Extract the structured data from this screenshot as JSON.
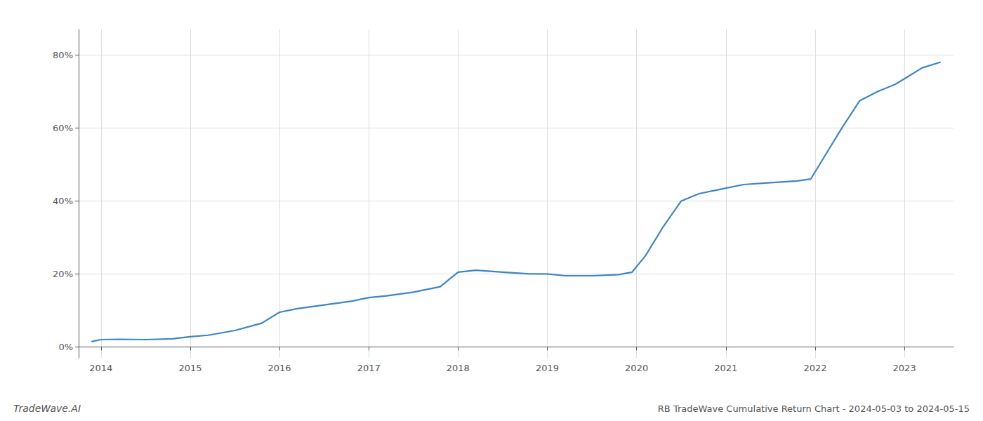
{
  "chart_data": {
    "type": "line",
    "title": "RB TradeWave Cumulative Return Chart - 2024-05-03 to 2024-05-15",
    "annotations": [
      "TradeWave.AI"
    ],
    "color": "#3d85c8",
    "x": [
      2013.9,
      2014.0,
      2014.2,
      2014.5,
      2014.8,
      2015.0,
      2015.2,
      2015.5,
      2015.8,
      2016.0,
      2016.2,
      2016.5,
      2016.8,
      2017.0,
      2017.2,
      2017.5,
      2017.8,
      2018.0,
      2018.2,
      2018.5,
      2018.8,
      2019.0,
      2019.2,
      2019.5,
      2019.8,
      2019.95,
      2020.1,
      2020.3,
      2020.5,
      2020.7,
      2021.0,
      2021.2,
      2021.5,
      2021.8,
      2021.95,
      2022.1,
      2022.3,
      2022.5,
      2022.7,
      2022.9,
      2023.0,
      2023.2,
      2023.4
    ],
    "values": [
      1.5,
      2.0,
      2.1,
      2.0,
      2.2,
      2.8,
      3.2,
      4.5,
      6.5,
      9.5,
      10.5,
      11.5,
      12.5,
      13.5,
      14.0,
      15.0,
      16.5,
      20.5,
      21.0,
      20.5,
      20.0,
      20.0,
      19.5,
      19.5,
      19.8,
      20.5,
      25.0,
      33.0,
      40.0,
      42.0,
      43.5,
      44.5,
      45.0,
      45.5,
      46.0,
      52.0,
      60.0,
      67.5,
      70.0,
      72.0,
      73.5,
      76.5,
      78.0
    ],
    "xlim": [
      2013.75,
      2023.55
    ],
    "ylim": [
      -3,
      87
    ],
    "xticks": [
      2014,
      2015,
      2016,
      2017,
      2018,
      2019,
      2020,
      2021,
      2022,
      2023
    ],
    "yticks": [
      {
        "value": 0,
        "label": "0%"
      },
      {
        "value": 20,
        "label": "20%"
      },
      {
        "value": 40,
        "label": "40%"
      },
      {
        "value": 60,
        "label": "60%"
      },
      {
        "value": 80,
        "label": "80%"
      }
    ],
    "grid": true
  }
}
